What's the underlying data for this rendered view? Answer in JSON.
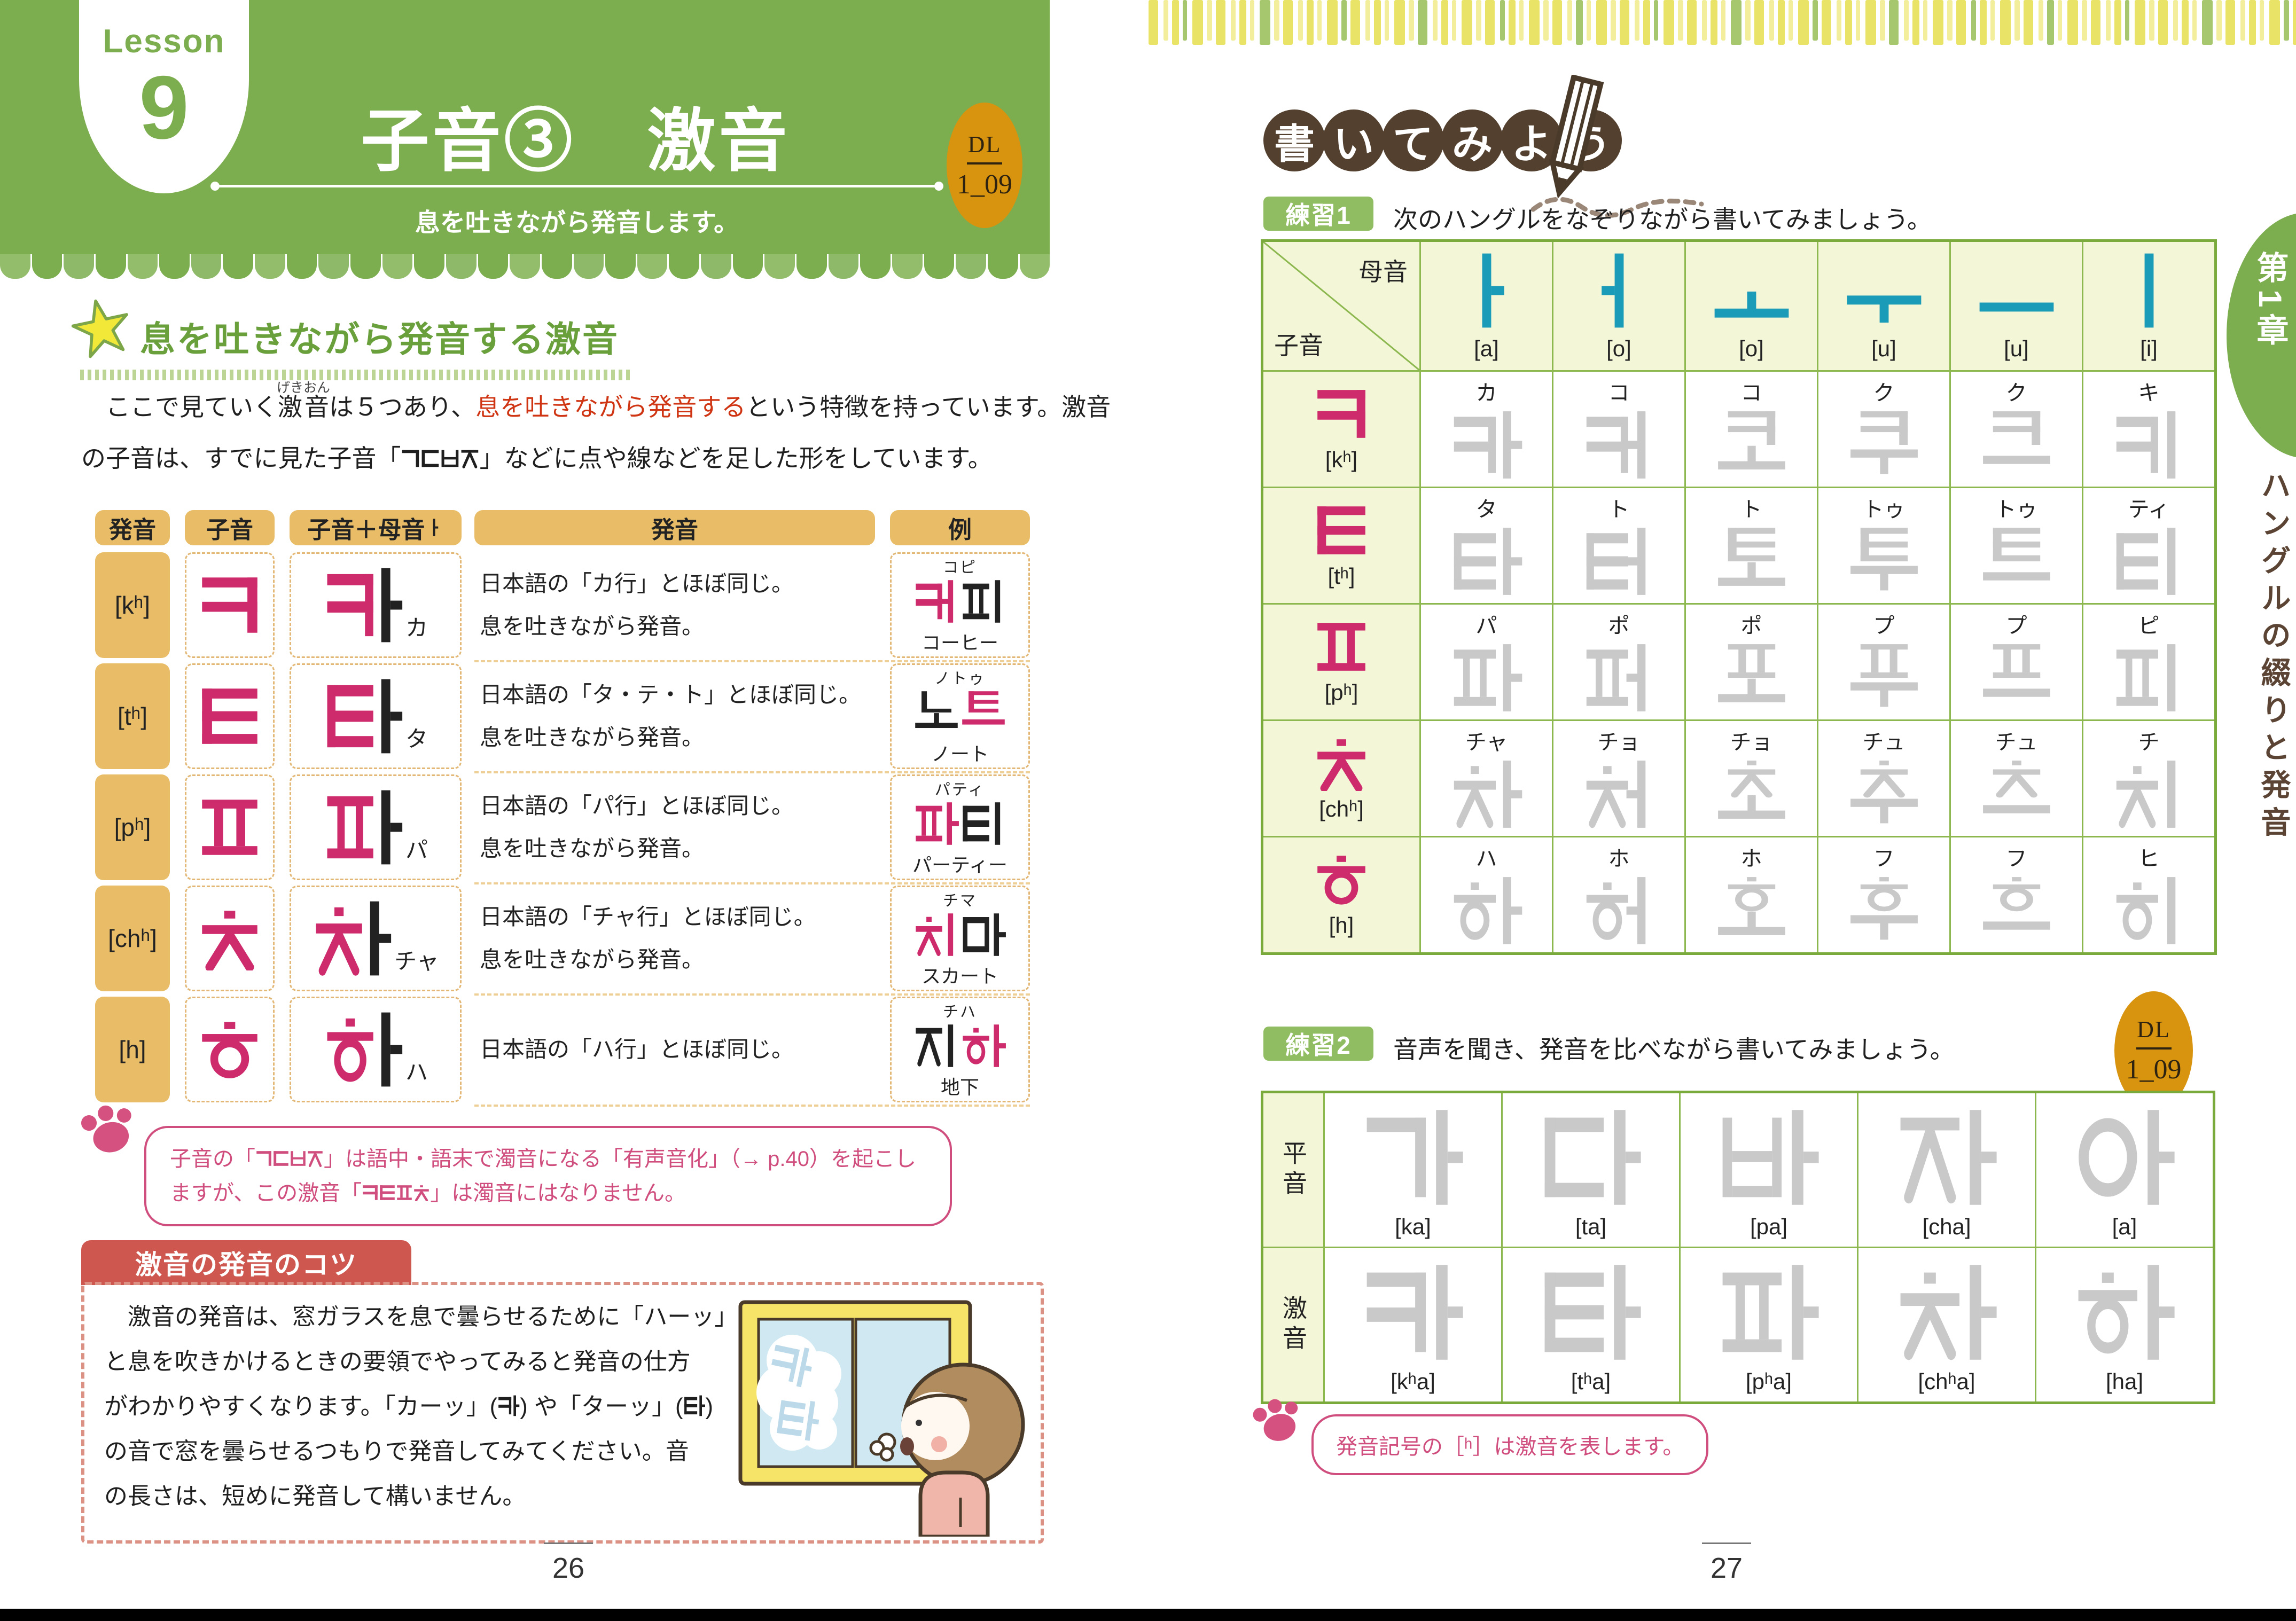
{
  "colors": {
    "header_green": "#7cad4e",
    "accent_pink": "#ce2b6c",
    "vowel_teal": "#1a9cb8",
    "table_orange": "#e9bd68",
    "dl_orange": "#d8940f",
    "red_emphasis": "#cf3513",
    "note_pink": "#d04e7d",
    "tips_red": "#ce5750",
    "heading_brown": "#53402f",
    "trace_gray": "#c9c9c9"
  },
  "icons": [
    "star-icon",
    "pencil-icon",
    "paw-icon",
    "dl-badge",
    "window-illustration",
    "scallop-edge",
    "stripe-band"
  ],
  "page_left": {
    "lesson_label": "Lesson",
    "lesson_number": "9",
    "title": "子音③　激音",
    "subtitle": "息を吐きながら発音します。",
    "dl_badge": {
      "label": "DL",
      "track": "1_09"
    },
    "section_heading": "息を吐きながら発音する激音",
    "intro": {
      "pre": "　ここで見ていく",
      "ruby_base": "激音",
      "ruby_rt": "げきおん",
      "mid": "は５つあり、",
      "red": "息を吐きながら発音する",
      "post": "という特徴を持っています。激音",
      "line2": "の子音は、すでに見た子音「ㄱㄷㅂㅈ」などに点や線などを足した形をしています。"
    },
    "table": {
      "headers": [
        "発音",
        "子音",
        "子音＋母音ㅏ",
        "発音",
        "例"
      ],
      "rows": [
        {
          "ipa": "[kʰ]",
          "consonant": "ㅋ",
          "syllable": "카",
          "kana": "カ",
          "desc": [
            "日本語の「カ行」とほぼ同じ。",
            "息を吐きながら発音。"
          ],
          "example": {
            "furigana": "コピ",
            "word": "커피",
            "accent": 0,
            "meaning": "コーヒー"
          }
        },
        {
          "ipa": "[tʰ]",
          "consonant": "ㅌ",
          "syllable": "타",
          "kana": "タ",
          "desc": [
            "日本語の「タ・テ・ト」とほぼ同じ。",
            "息を吐きながら発音。"
          ],
          "example": {
            "furigana": "ノトゥ",
            "word": "노트",
            "accent": 1,
            "meaning": "ノート"
          }
        },
        {
          "ipa": "[pʰ]",
          "consonant": "ㅍ",
          "syllable": "파",
          "kana": "パ",
          "desc": [
            "日本語の「パ行」とほぼ同じ。",
            "息を吐きながら発音。"
          ],
          "example": {
            "furigana": "パティ",
            "word": "파티",
            "accent": 0,
            "meaning": "パーティー"
          }
        },
        {
          "ipa": "[chʰ]",
          "consonant": "ㅊ",
          "syllable": "차",
          "kana": "チャ",
          "desc": [
            "日本語の「チャ行」とほぼ同じ。",
            "息を吐きながら発音。"
          ],
          "example": {
            "furigana": "チマ",
            "word": "치마",
            "accent": 0,
            "meaning": "スカート"
          }
        },
        {
          "ipa": "[h]",
          "consonant": "ㅎ",
          "syllable": "하",
          "kana": "ハ",
          "desc": [
            "日本語の「ハ行」とほぼ同じ。"
          ],
          "example": {
            "furigana": "チハ",
            "word": "지하",
            "accent": 1,
            "meaning": "地下"
          }
        }
      ]
    },
    "note": "子音の「ㄱㄷㅂㅈ」は語中・語末で濁音になる「有声音化」（→ p.40）を起こしますが、この激音「ㅋㅌㅍㅊ」は濁音にはなりません。",
    "tips": {
      "title": "激音の発音のコツ",
      "lines": [
        "　激音の発音は、窓ガラスを息で曇らせるために「ハーッ」",
        "と息を吹きかけるときの要領でやってみると発音の仕方",
        "がわかりやすくなります。「カーッ」(카) や「ターッ」(타)",
        "の音で窓を曇らせるつもりで発音してみてください。音",
        "の長さは、短めに発音して構いません。"
      ],
      "fog_syllables": [
        "카",
        "타"
      ]
    },
    "page_number": "26"
  },
  "page_right": {
    "write_heading": [
      "書",
      "い",
      "て",
      "み",
      "よ",
      "う"
    ],
    "exercise1": {
      "badge": "練習1",
      "instruction": "次のハングルをなぞりながら書いてみましょう。",
      "corner_top": "母音",
      "corner_bottom": "子音",
      "vowels": [
        {
          "jamo": "ㅏ",
          "ipa": "[a]"
        },
        {
          "jamo": "ㅓ",
          "ipa": "[o]"
        },
        {
          "jamo": "ㅗ",
          "ipa": "[o]"
        },
        {
          "jamo": "ㅜ",
          "ipa": "[u]"
        },
        {
          "jamo": "ㅡ",
          "ipa": "[u]"
        },
        {
          "jamo": "ㅣ",
          "ipa": "[i]"
        }
      ],
      "rows": [
        {
          "consonant": "ㅋ",
          "ipa": "[kʰ]",
          "readings": [
            "カ",
            "コ",
            "コ",
            "ク",
            "ク",
            "キ"
          ],
          "syllables": [
            "카",
            "커",
            "코",
            "쿠",
            "크",
            "키"
          ]
        },
        {
          "consonant": "ㅌ",
          "ipa": "[tʰ]",
          "readings": [
            "タ",
            "ト",
            "ト",
            "トゥ",
            "トゥ",
            "ティ"
          ],
          "syllables": [
            "타",
            "터",
            "토",
            "투",
            "트",
            "티"
          ]
        },
        {
          "consonant": "ㅍ",
          "ipa": "[pʰ]",
          "readings": [
            "パ",
            "ポ",
            "ポ",
            "プ",
            "プ",
            "ピ"
          ],
          "syllables": [
            "파",
            "퍼",
            "포",
            "푸",
            "프",
            "피"
          ]
        },
        {
          "consonant": "ㅊ",
          "ipa": "[chʰ]",
          "readings": [
            "チャ",
            "チョ",
            "チョ",
            "チュ",
            "チュ",
            "チ"
          ],
          "syllables": [
            "차",
            "처",
            "초",
            "추",
            "츠",
            "치"
          ]
        },
        {
          "consonant": "ㅎ",
          "ipa": "[h]",
          "readings": [
            "ハ",
            "ホ",
            "ホ",
            "フ",
            "フ",
            "ヒ"
          ],
          "syllables": [
            "하",
            "허",
            "호",
            "후",
            "흐",
            "히"
          ]
        }
      ]
    },
    "exercise2": {
      "badge": "練習2",
      "instruction": "音声を聞き、発音を比べながら書いてみましょう。",
      "dl_badge": {
        "label": "DL",
        "track": "1_09"
      },
      "rows": [
        {
          "label": "平音",
          "cells": [
            {
              "syllable": "가",
              "ipa": "[ka]"
            },
            {
              "syllable": "다",
              "ipa": "[ta]"
            },
            {
              "syllable": "바",
              "ipa": "[pa]"
            },
            {
              "syllable": "자",
              "ipa": "[cha]"
            },
            {
              "syllable": "아",
              "ipa": "[a]"
            }
          ]
        },
        {
          "label": "激音",
          "cells": [
            {
              "syllable": "카",
              "ipa": "[kʰa]"
            },
            {
              "syllable": "타",
              "ipa": "[tʰa]"
            },
            {
              "syllable": "파",
              "ipa": "[pʰa]"
            },
            {
              "syllable": "차",
              "ipa": "[chʰa]"
            },
            {
              "syllable": "하",
              "ipa": "[ha]"
            }
          ]
        }
      ]
    },
    "note2": "発音記号の［ʰ］は激音を表します。",
    "chapter_tab": {
      "chapter": "第1章",
      "title": "ハングルの綴りと発音"
    },
    "page_number": "27"
  }
}
